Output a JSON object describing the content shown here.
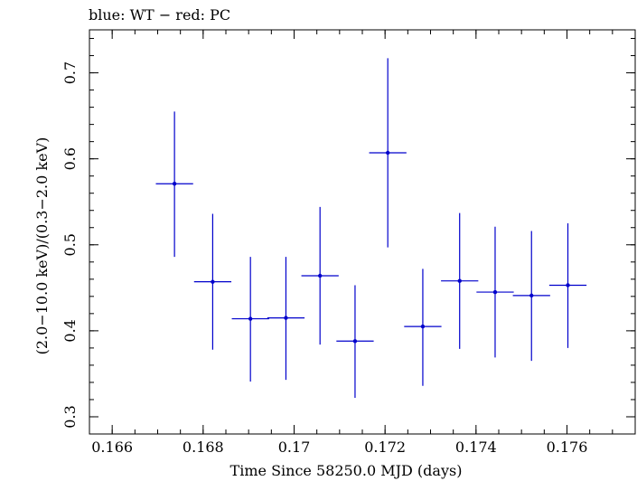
{
  "chart_data": {
    "type": "scatter",
    "title": "blue: WT − red: PC",
    "xlabel": "Time Since 58250.0 MJD (days)",
    "ylabel": "(2.0−10.0 keV)/(0.3−2.0 keV)",
    "xlim": [
      0.1655,
      0.1775
    ],
    "ylim": [
      0.28,
      0.75
    ],
    "xticks": [
      0.166,
      0.168,
      0.17,
      0.172,
      0.174,
      0.176
    ],
    "xtick_labels": [
      "0.166",
      "0.168",
      "0.17",
      "0.172",
      "0.174",
      "0.176"
    ],
    "yticks": [
      0.3,
      0.4,
      0.5,
      0.6,
      0.7
    ],
    "ytick_labels": [
      "0.3",
      "0.4",
      "0.5",
      "0.6",
      "0.7"
    ],
    "grid": false,
    "series_color": "#0000cc",
    "series": [
      {
        "points": [
          {
            "x": 0.16737,
            "y": 0.571,
            "xerr": 0.00041,
            "ylow": 0.486,
            "yhigh": 0.655
          },
          {
            "x": 0.16821,
            "y": 0.457,
            "xerr": 0.00041,
            "ylow": 0.378,
            "yhigh": 0.536
          },
          {
            "x": 0.16904,
            "y": 0.414,
            "xerr": 0.00041,
            "ylow": 0.341,
            "yhigh": 0.486
          },
          {
            "x": 0.16982,
            "y": 0.415,
            "xerr": 0.00041,
            "ylow": 0.343,
            "yhigh": 0.486
          },
          {
            "x": 0.17057,
            "y": 0.464,
            "xerr": 0.00041,
            "ylow": 0.384,
            "yhigh": 0.544
          },
          {
            "x": 0.17134,
            "y": 0.388,
            "xerr": 0.00041,
            "ylow": 0.322,
            "yhigh": 0.453
          },
          {
            "x": 0.17206,
            "y": 0.607,
            "xerr": 0.00041,
            "ylow": 0.497,
            "yhigh": 0.717
          },
          {
            "x": 0.17283,
            "y": 0.405,
            "xerr": 0.00041,
            "ylow": 0.336,
            "yhigh": 0.472
          },
          {
            "x": 0.17364,
            "y": 0.458,
            "xerr": 0.00041,
            "ylow": 0.379,
            "yhigh": 0.537
          },
          {
            "x": 0.17442,
            "y": 0.445,
            "xerr": 0.00041,
            "ylow": 0.369,
            "yhigh": 0.521
          },
          {
            "x": 0.17522,
            "y": 0.441,
            "xerr": 0.00041,
            "ylow": 0.365,
            "yhigh": 0.516
          },
          {
            "x": 0.17602,
            "y": 0.453,
            "xerr": 0.00041,
            "ylow": 0.38,
            "yhigh": 0.525
          }
        ]
      }
    ]
  }
}
